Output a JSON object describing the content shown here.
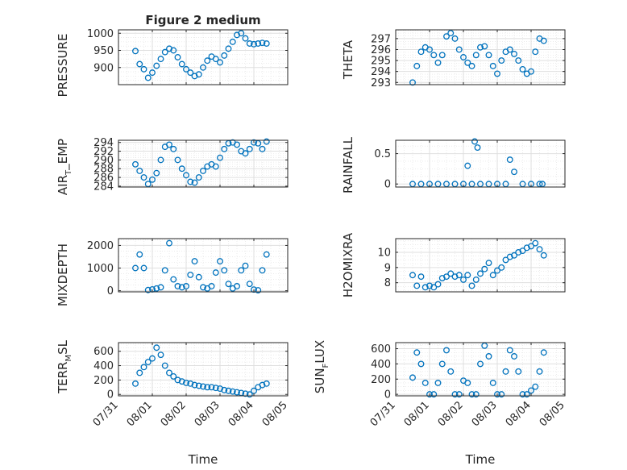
{
  "figure": {
    "title": "Figure 2 medium"
  },
  "style": {
    "marker_color": "#0072BD",
    "axis_color": "#262626",
    "grid_color": "#dfdfdf"
  },
  "chart_data": [
    {
      "type": "scatter",
      "ylabel": "PRESSURE",
      "xlabel": "",
      "title": "Figure 2 medium",
      "xlim": [
        "2019-07-31",
        "2019-08-05"
      ],
      "ylim": [
        850,
        1010
      ],
      "yticks": [
        900,
        950,
        1000
      ],
      "x_ticklabels": [],
      "grid": true,
      "minor_grid": true,
      "x": [
        "2019-07-31 12:00",
        "2019-07-31 15:00",
        "2019-07-31 18:00",
        "2019-07-31 21:00",
        "2019-08-01 00:00",
        "2019-08-01 03:00",
        "2019-08-01 06:00",
        "2019-08-01 09:00",
        "2019-08-01 12:00",
        "2019-08-01 15:00",
        "2019-08-01 18:00",
        "2019-08-01 21:00",
        "2019-08-02 00:00",
        "2019-08-02 03:00",
        "2019-08-02 06:00",
        "2019-08-02 09:00",
        "2019-08-02 12:00",
        "2019-08-02 15:00",
        "2019-08-02 18:00",
        "2019-08-02 21:00",
        "2019-08-03 00:00",
        "2019-08-03 03:00",
        "2019-08-03 06:00",
        "2019-08-03 09:00",
        "2019-08-03 12:00",
        "2019-08-03 15:00",
        "2019-08-03 18:00",
        "2019-08-03 21:00",
        "2019-08-04 00:00",
        "2019-08-04 03:00",
        "2019-08-04 06:00",
        "2019-08-04 09:00"
      ],
      "y": [
        948,
        910,
        895,
        870,
        885,
        905,
        925,
        945,
        955,
        950,
        930,
        910,
        895,
        885,
        875,
        880,
        900,
        920,
        932,
        925,
        915,
        935,
        955,
        975,
        995,
        1000,
        985,
        970,
        968,
        970,
        972,
        970
      ]
    },
    {
      "type": "scatter",
      "ylabel": "THETA",
      "xlabel": "",
      "xlim": [
        "2019-07-31",
        "2019-08-05"
      ],
      "ylim": [
        292.8,
        297.8
      ],
      "yticks": [
        293,
        294,
        295,
        296,
        297
      ],
      "x_ticklabels": [],
      "grid": true,
      "minor_grid": true,
      "x": [
        "2019-07-31 12:00",
        "2019-07-31 15:00",
        "2019-07-31 18:00",
        "2019-07-31 21:00",
        "2019-08-01 00:00",
        "2019-08-01 03:00",
        "2019-08-01 06:00",
        "2019-08-01 09:00",
        "2019-08-01 12:00",
        "2019-08-01 15:00",
        "2019-08-01 18:00",
        "2019-08-01 21:00",
        "2019-08-02 00:00",
        "2019-08-02 03:00",
        "2019-08-02 06:00",
        "2019-08-02 09:00",
        "2019-08-02 12:00",
        "2019-08-02 15:00",
        "2019-08-02 18:00",
        "2019-08-02 21:00",
        "2019-08-03 00:00",
        "2019-08-03 03:00",
        "2019-08-03 06:00",
        "2019-08-03 09:00",
        "2019-08-03 12:00",
        "2019-08-03 15:00",
        "2019-08-03 18:00",
        "2019-08-03 21:00",
        "2019-08-04 00:00",
        "2019-08-04 03:00",
        "2019-08-04 06:00",
        "2019-08-04 09:00"
      ],
      "y": [
        293,
        294.5,
        295.8,
        296.2,
        296,
        295.5,
        294.8,
        295.5,
        297.2,
        297.5,
        297,
        296,
        295.3,
        294.8,
        294.5,
        295.5,
        296.2,
        296.3,
        295.5,
        294.5,
        293.8,
        295,
        295.8,
        296,
        295.6,
        295,
        294.2,
        293.8,
        294,
        295.8,
        297,
        296.8
      ]
    },
    {
      "type": "scatter",
      "ylabel": "AIR_TEMP",
      "xlabel": "",
      "xlim": [
        "2019-07-31",
        "2019-08-05"
      ],
      "ylim": [
        283.8,
        294.5
      ],
      "yticks": [
        284,
        286,
        288,
        290,
        292,
        294
      ],
      "x_ticklabels": [],
      "grid": true,
      "minor_grid": true,
      "x": [
        "2019-07-31 12:00",
        "2019-07-31 15:00",
        "2019-07-31 18:00",
        "2019-07-31 21:00",
        "2019-08-01 00:00",
        "2019-08-01 03:00",
        "2019-08-01 06:00",
        "2019-08-01 09:00",
        "2019-08-01 12:00",
        "2019-08-01 15:00",
        "2019-08-01 18:00",
        "2019-08-01 21:00",
        "2019-08-02 00:00",
        "2019-08-02 03:00",
        "2019-08-02 06:00",
        "2019-08-02 09:00",
        "2019-08-02 12:00",
        "2019-08-02 15:00",
        "2019-08-02 18:00",
        "2019-08-02 21:00",
        "2019-08-03 00:00",
        "2019-08-03 03:00",
        "2019-08-03 06:00",
        "2019-08-03 09:00",
        "2019-08-03 12:00",
        "2019-08-03 15:00",
        "2019-08-03 18:00",
        "2019-08-03 21:00",
        "2019-08-04 00:00",
        "2019-08-04 03:00",
        "2019-08-04 06:00",
        "2019-08-04 09:00"
      ],
      "y": [
        289,
        287.5,
        286,
        284.5,
        285.5,
        287,
        290,
        293,
        293.5,
        292.5,
        290,
        288,
        286.5,
        285,
        284.8,
        286,
        287.5,
        288.5,
        289,
        288.5,
        290.5,
        292.5,
        293.8,
        294,
        293.5,
        292,
        291.5,
        292.5,
        294,
        293.8,
        292.5,
        294.2
      ]
    },
    {
      "type": "scatter",
      "ylabel": "RAINFALL",
      "xlabel": "",
      "xlim": [
        "2019-07-31",
        "2019-08-05"
      ],
      "ylim": [
        -0.05,
        0.72
      ],
      "yticks": [
        0,
        0.5
      ],
      "x_ticklabels": [],
      "grid": true,
      "minor_grid": true,
      "x": [
        "2019-07-31 12:00",
        "2019-07-31 18:00",
        "2019-08-01 00:00",
        "2019-08-01 06:00",
        "2019-08-01 12:00",
        "2019-08-01 18:00",
        "2019-08-02 00:00",
        "2019-08-02 03:00",
        "2019-08-02 06:00",
        "2019-08-02 08:00",
        "2019-08-02 10:00",
        "2019-08-02 12:00",
        "2019-08-02 18:00",
        "2019-08-03 00:00",
        "2019-08-03 06:00",
        "2019-08-03 09:00",
        "2019-08-03 12:00",
        "2019-08-03 18:00",
        "2019-08-04 00:00",
        "2019-08-04 06:00",
        "2019-08-04 08:00"
      ],
      "y": [
        0,
        0,
        0,
        0,
        0,
        0,
        0,
        0.3,
        0,
        0.7,
        0.6,
        0,
        0,
        0,
        0,
        0.4,
        0.2,
        0,
        0,
        0,
        0
      ]
    },
    {
      "type": "scatter",
      "ylabel": "MIXDEPTH",
      "xlabel": "",
      "xlim": [
        "2019-07-31",
        "2019-08-05"
      ],
      "ylim": [
        -50,
        2300
      ],
      "yticks": [
        0,
        1000,
        2000
      ],
      "x_ticklabels": [],
      "grid": true,
      "minor_grid": true,
      "x": [
        "2019-07-31 12:00",
        "2019-07-31 15:00",
        "2019-07-31 18:00",
        "2019-07-31 21:00",
        "2019-08-01 00:00",
        "2019-08-01 03:00",
        "2019-08-01 06:00",
        "2019-08-01 09:00",
        "2019-08-01 12:00",
        "2019-08-01 15:00",
        "2019-08-01 18:00",
        "2019-08-01 21:00",
        "2019-08-02 00:00",
        "2019-08-02 03:00",
        "2019-08-02 06:00",
        "2019-08-02 09:00",
        "2019-08-02 12:00",
        "2019-08-02 15:00",
        "2019-08-02 18:00",
        "2019-08-02 21:00",
        "2019-08-03 00:00",
        "2019-08-03 03:00",
        "2019-08-03 06:00",
        "2019-08-03 09:00",
        "2019-08-03 12:00",
        "2019-08-03 15:00",
        "2019-08-03 18:00",
        "2019-08-03 21:00",
        "2019-08-04 00:00",
        "2019-08-04 03:00",
        "2019-08-04 06:00",
        "2019-08-04 09:00"
      ],
      "y": [
        1000,
        1600,
        1000,
        30,
        60,
        100,
        150,
        900,
        2100,
        500,
        200,
        150,
        200,
        700,
        1300,
        600,
        150,
        100,
        200,
        800,
        1300,
        900,
        300,
        100,
        200,
        900,
        1100,
        300,
        50,
        20,
        900,
        1600
      ]
    },
    {
      "type": "scatter",
      "ylabel": "H2OMIXRA",
      "xlabel": "",
      "xlim": [
        "2019-07-31",
        "2019-08-05"
      ],
      "ylim": [
        7.4,
        10.9
      ],
      "yticks": [
        8,
        9,
        10
      ],
      "x_ticklabels": [],
      "grid": true,
      "minor_grid": true,
      "x": [
        "2019-07-31 12:00",
        "2019-07-31 15:00",
        "2019-07-31 18:00",
        "2019-07-31 21:00",
        "2019-08-01 00:00",
        "2019-08-01 03:00",
        "2019-08-01 06:00",
        "2019-08-01 09:00",
        "2019-08-01 12:00",
        "2019-08-01 15:00",
        "2019-08-01 18:00",
        "2019-08-01 21:00",
        "2019-08-02 00:00",
        "2019-08-02 03:00",
        "2019-08-02 06:00",
        "2019-08-02 09:00",
        "2019-08-02 12:00",
        "2019-08-02 15:00",
        "2019-08-02 18:00",
        "2019-08-02 21:00",
        "2019-08-03 00:00",
        "2019-08-03 03:00",
        "2019-08-03 06:00",
        "2019-08-03 09:00",
        "2019-08-03 12:00",
        "2019-08-03 15:00",
        "2019-08-03 18:00",
        "2019-08-03 21:00",
        "2019-08-04 00:00",
        "2019-08-04 03:00",
        "2019-08-04 06:00",
        "2019-08-04 09:00"
      ],
      "y": [
        8.5,
        7.8,
        8.4,
        7.7,
        7.8,
        7.7,
        7.9,
        8.3,
        8.4,
        8.6,
        8.4,
        8.5,
        8.2,
        8.5,
        7.8,
        8.2,
        8.6,
        8.9,
        9.3,
        8.5,
        8.8,
        9.0,
        9.5,
        9.7,
        9.8,
        10.0,
        10.1,
        10.3,
        10.4,
        10.6,
        10.2,
        9.8
      ]
    },
    {
      "type": "scatter",
      "ylabel": "TERR_MSL",
      "xlabel": "Time",
      "xlim": [
        "2019-07-31",
        "2019-08-05"
      ],
      "ylim": [
        -20,
        720
      ],
      "yticks": [
        0,
        200,
        400,
        600
      ],
      "x_ticklabels": [
        "07/31",
        "08/01",
        "08/02",
        "08/03",
        "08/04",
        "08/05"
      ],
      "grid": true,
      "minor_grid": true,
      "x": [
        "2019-07-31 12:00",
        "2019-07-31 15:00",
        "2019-07-31 18:00",
        "2019-07-31 21:00",
        "2019-08-01 00:00",
        "2019-08-01 03:00",
        "2019-08-01 06:00",
        "2019-08-01 09:00",
        "2019-08-01 12:00",
        "2019-08-01 15:00",
        "2019-08-01 18:00",
        "2019-08-01 21:00",
        "2019-08-02 00:00",
        "2019-08-02 03:00",
        "2019-08-02 06:00",
        "2019-08-02 09:00",
        "2019-08-02 12:00",
        "2019-08-02 15:00",
        "2019-08-02 18:00",
        "2019-08-02 21:00",
        "2019-08-03 00:00",
        "2019-08-03 03:00",
        "2019-08-03 06:00",
        "2019-08-03 09:00",
        "2019-08-03 12:00",
        "2019-08-03 15:00",
        "2019-08-03 18:00",
        "2019-08-03 21:00",
        "2019-08-04 00:00",
        "2019-08-04 03:00",
        "2019-08-04 06:00",
        "2019-08-04 09:00"
      ],
      "y": [
        150,
        300,
        380,
        450,
        500,
        650,
        550,
        400,
        300,
        250,
        200,
        180,
        160,
        150,
        130,
        120,
        110,
        100,
        100,
        90,
        80,
        60,
        50,
        40,
        30,
        20,
        10,
        0,
        50,
        100,
        130,
        150
      ]
    },
    {
      "type": "scatter",
      "ylabel": "SUN_FLUX",
      "xlabel": "Time",
      "xlim": [
        "2019-07-31",
        "2019-08-05"
      ],
      "ylim": [
        -20,
        680
      ],
      "yticks": [
        0,
        200,
        400,
        600
      ],
      "x_ticklabels": [
        "07/31",
        "08/01",
        "08/02",
        "08/03",
        "08/04",
        "08/05"
      ],
      "grid": true,
      "minor_grid": true,
      "x": [
        "2019-07-31 12:00",
        "2019-07-31 15:00",
        "2019-07-31 18:00",
        "2019-07-31 21:00",
        "2019-08-01 00:00",
        "2019-08-01 03:00",
        "2019-08-01 06:00",
        "2019-08-01 09:00",
        "2019-08-01 12:00",
        "2019-08-01 15:00",
        "2019-08-01 18:00",
        "2019-08-01 21:00",
        "2019-08-02 00:00",
        "2019-08-02 03:00",
        "2019-08-02 06:00",
        "2019-08-02 09:00",
        "2019-08-02 12:00",
        "2019-08-02 15:00",
        "2019-08-02 18:00",
        "2019-08-02 21:00",
        "2019-08-03 00:00",
        "2019-08-03 03:00",
        "2019-08-03 06:00",
        "2019-08-03 09:00",
        "2019-08-03 12:00",
        "2019-08-03 15:00",
        "2019-08-03 18:00",
        "2019-08-03 21:00",
        "2019-08-04 00:00",
        "2019-08-04 03:00",
        "2019-08-04 06:00",
        "2019-08-04 09:00"
      ],
      "y": [
        220,
        550,
        400,
        150,
        0,
        0,
        150,
        400,
        580,
        300,
        0,
        0,
        180,
        150,
        0,
        0,
        400,
        640,
        500,
        150,
        0,
        0,
        300,
        580,
        500,
        300,
        0,
        0,
        50,
        100,
        300,
        550
      ]
    }
  ]
}
